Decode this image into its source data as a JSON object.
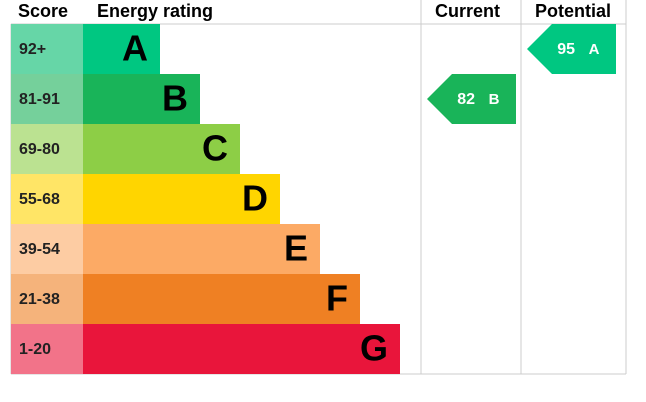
{
  "header": {
    "score": "Score",
    "rating": "Energy rating",
    "current": "Current",
    "potential": "Potential"
  },
  "bands": [
    {
      "score": "92+",
      "letter": "A",
      "color": "#00c781",
      "score_color": "#66d6a7"
    },
    {
      "score": "81-91",
      "letter": "B",
      "color": "#19b459",
      "score_color": "#75d09b"
    },
    {
      "score": "69-80",
      "letter": "C",
      "color": "#8dce46",
      "score_color": "#bbe291"
    },
    {
      "score": "55-68",
      "letter": "D",
      "color": "#ffd500",
      "score_color": "#ffe566"
    },
    {
      "score": "39-54",
      "letter": "E",
      "color": "#fcaa65",
      "score_color": "#fdcca3"
    },
    {
      "score": "21-38",
      "letter": "F",
      "color": "#ef8023",
      "score_color": "#f5b37b"
    },
    {
      "score": "1-20",
      "letter": "G",
      "color": "#e9153b",
      "score_color": "#f27389"
    }
  ],
  "current": {
    "value": 82,
    "letter": "B"
  },
  "potential": {
    "value": 95,
    "letter": "A"
  }
}
